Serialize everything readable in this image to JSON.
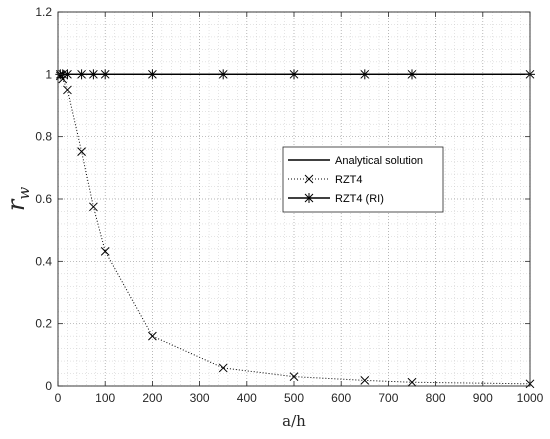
{
  "chart_data": {
    "type": "line",
    "xlabel": "a/h",
    "ylabel_main": "r",
    "ylabel_sub": "w",
    "xlim": [
      0,
      1000
    ],
    "ylim": [
      0,
      1.2
    ],
    "x_ticks": [
      0,
      100,
      200,
      300,
      400,
      500,
      600,
      700,
      800,
      900,
      1000
    ],
    "y_ticks": [
      0,
      0.2,
      0.4,
      0.6,
      0.8,
      1,
      1.2
    ],
    "grid": "major and minor, dotted",
    "legend_position": "center-right",
    "series": [
      {
        "name": "Analytical solution",
        "style": "solid",
        "marker": "none",
        "x": [
          0,
          1000
        ],
        "y": [
          1,
          1
        ]
      },
      {
        "name": "RZT4",
        "style": "dotted",
        "marker": "x",
        "x": [
          5,
          10,
          20,
          50,
          75,
          100,
          200,
          350,
          500,
          650,
          750,
          1000
        ],
        "y": [
          0.995,
          0.985,
          0.95,
          0.752,
          0.575,
          0.432,
          0.16,
          0.058,
          0.03,
          0.018,
          0.012,
          0.007
        ]
      },
      {
        "name": "RZT4 (RI)",
        "style": "solid",
        "marker": "asterisk",
        "x": [
          5,
          10,
          20,
          50,
          75,
          100,
          200,
          350,
          500,
          650,
          750,
          1000
        ],
        "y": [
          1,
          1,
          1,
          1,
          1,
          1,
          1,
          1,
          1,
          1,
          1,
          1
        ]
      }
    ]
  }
}
